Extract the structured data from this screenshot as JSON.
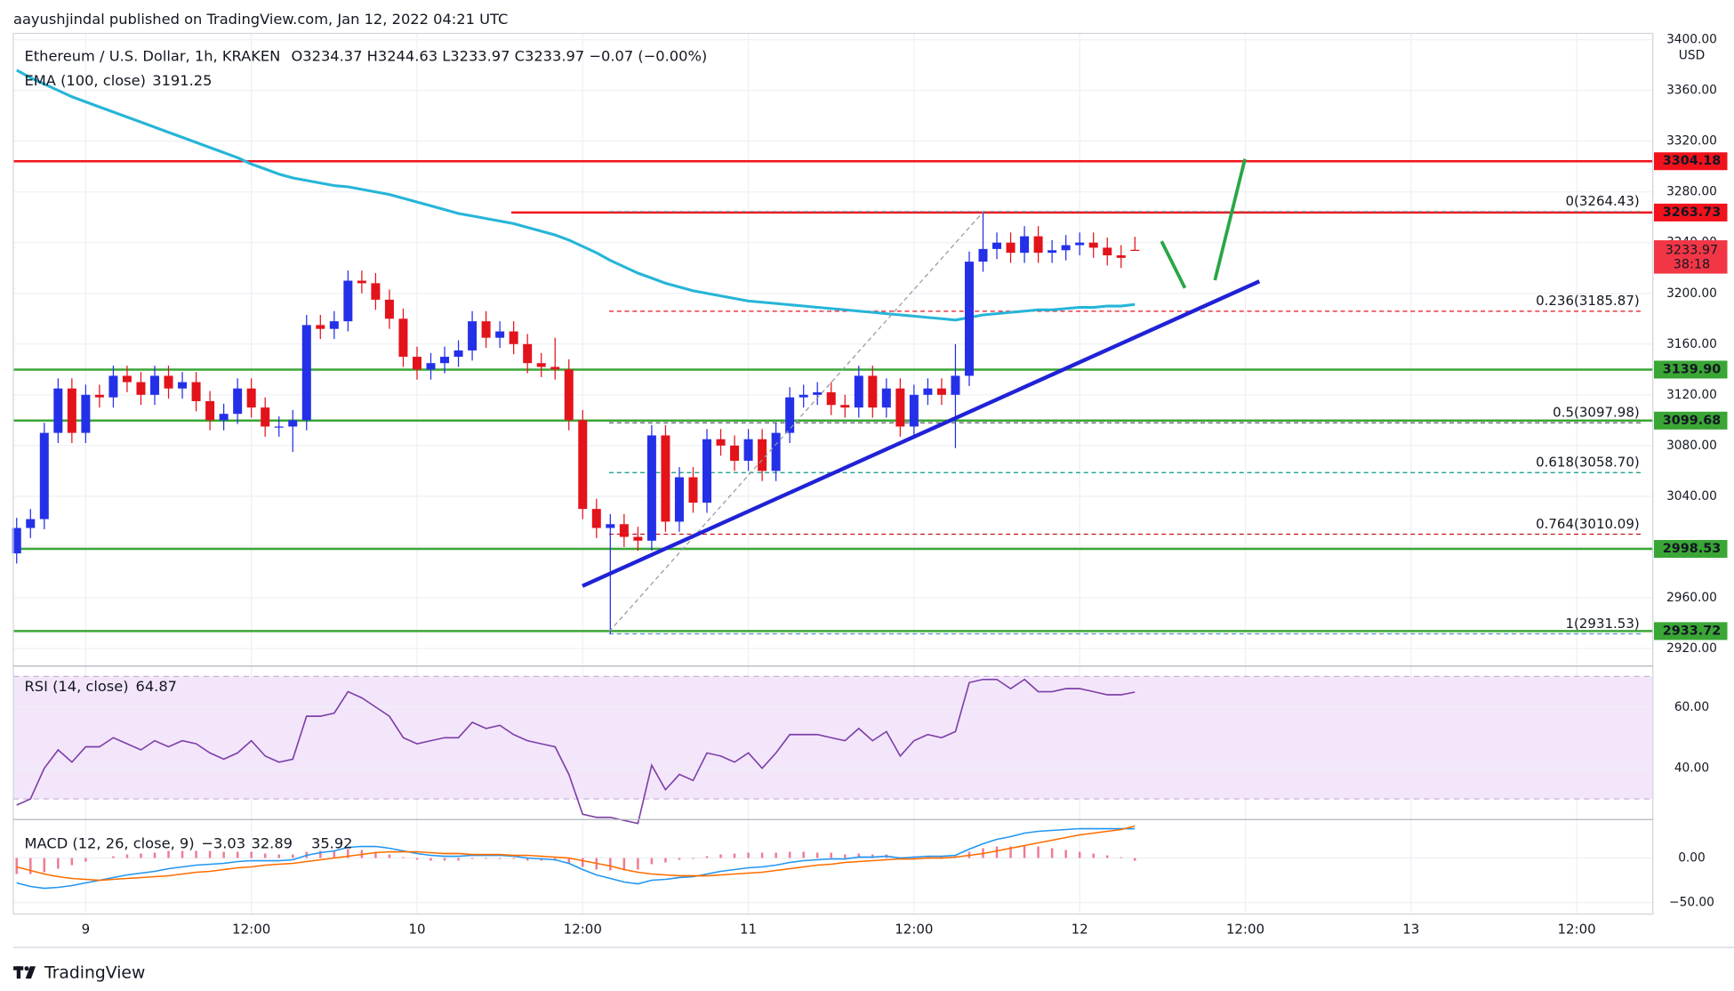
{
  "header": {
    "published": "aayushjindal published on TradingView.com, Jan 12, 2022 04:21 UTC"
  },
  "chart_data": [
    {
      "type": "candlestick",
      "title": "Ethereum / U.S. Dollar, 1h, KRAKEN",
      "ohlc_text": "O3234.37 H3244.63 L3233.97 C3233.97 −0.07 (−0.00%)",
      "currency": "USD",
      "up_color": "#2430e8",
      "down_color": "#e3131b",
      "open": [
        2995,
        3015,
        3022,
        3090,
        3125,
        3090,
        3120,
        3118,
        3135,
        3130,
        3120,
        3135,
        3125,
        3130,
        3115,
        3100,
        3105,
        3125,
        3110,
        3095,
        3095,
        3100,
        3175,
        3172,
        3178,
        3210,
        3208,
        3195,
        3180,
        3150,
        3140,
        3145,
        3150,
        3155,
        3178,
        3165,
        3170,
        3160,
        3145,
        3142,
        3140,
        3100,
        3030,
        3015,
        3018,
        3008,
        3005,
        3088,
        3020,
        3055,
        3035,
        3085,
        3080,
        3068,
        3085,
        3060,
        3090,
        3118,
        3120,
        3122,
        3112,
        3110,
        3135,
        3110,
        3125,
        3095,
        3120,
        3125,
        3120,
        3135,
        3225,
        3235,
        3240,
        3232,
        3245,
        3232,
        3234,
        3238,
        3240,
        3236,
        3230,
        3234.37
      ],
      "high": [
        3023,
        3030,
        3098,
        3133,
        3133,
        3128,
        3128,
        3143,
        3143,
        3138,
        3143,
        3143,
        3138,
        3138,
        3123,
        3113,
        3133,
        3133,
        3118,
        3103,
        3108,
        3183,
        3183,
        3186,
        3218,
        3218,
        3216,
        3203,
        3188,
        3158,
        3153,
        3158,
        3163,
        3186,
        3186,
        3178,
        3178,
        3168,
        3153,
        3165,
        3148,
        3108,
        3038,
        3026,
        3026,
        3016,
        3096,
        3096,
        3063,
        3063,
        3093,
        3093,
        3088,
        3093,
        3093,
        3098,
        3126,
        3128,
        3130,
        3130,
        3120,
        3143,
        3143,
        3133,
        3133,
        3128,
        3133,
        3133,
        3160,
        3233,
        3264.43,
        3248,
        3248,
        3253,
        3253,
        3242,
        3246,
        3248,
        3248,
        3244,
        3238,
        3244.63
      ],
      "low": [
        2987,
        3007,
        3014,
        3082,
        3082,
        3082,
        3110,
        3110,
        3122,
        3112,
        3112,
        3117,
        3117,
        3107,
        3092,
        3092,
        3097,
        3102,
        3087,
        3087,
        3075,
        3092,
        3164,
        3164,
        3170,
        3200,
        3187,
        3172,
        3142,
        3132,
        3132,
        3137,
        3142,
        3147,
        3157,
        3157,
        3152,
        3137,
        3134,
        3132,
        3092,
        3022,
        3007,
        2931.53,
        3000,
        2997,
        2997,
        3012,
        3012,
        3027,
        3027,
        3072,
        3060,
        3060,
        3052,
        3052,
        3082,
        3110,
        3112,
        3104,
        3102,
        3102,
        3102,
        3102,
        3087,
        3087,
        3112,
        3112,
        3078,
        3127,
        3217,
        3227,
        3224,
        3224,
        3224,
        3224,
        3226,
        3230,
        3228,
        3222,
        3220,
        3233.97
      ],
      "close": [
        3015,
        3022,
        3090,
        3125,
        3090,
        3120,
        3118,
        3135,
        3130,
        3120,
        3135,
        3125,
        3130,
        3115,
        3100,
        3105,
        3125,
        3110,
        3095,
        3095,
        3100,
        3175,
        3172,
        3178,
        3210,
        3208,
        3195,
        3180,
        3150,
        3140,
        3145,
        3150,
        3155,
        3178,
        3165,
        3170,
        3160,
        3145,
        3142,
        3140,
        3100,
        3030,
        3015,
        3018,
        3008,
        3005,
        3088,
        3020,
        3055,
        3035,
        3085,
        3080,
        3068,
        3085,
        3060,
        3090,
        3118,
        3120,
        3122,
        3112,
        3110,
        3135,
        3110,
        3125,
        3095,
        3120,
        3125,
        3120,
        3135,
        3225,
        3235,
        3240,
        3232,
        3245,
        3232,
        3234,
        3238,
        3240,
        3236,
        3230,
        3228,
        3233.97
      ],
      "ema": {
        "name": "EMA (100, close)",
        "legend_value": "3191.25",
        "color": "#26b5d8",
        "values": [
          3376,
          3370,
          3365,
          3360,
          3355,
          3351,
          3347,
          3343,
          3339,
          3335,
          3331,
          3327,
          3323,
          3319,
          3315,
          3311,
          3307,
          3302,
          3298,
          3294,
          3291,
          3289,
          3287,
          3285,
          3284,
          3282,
          3280,
          3278,
          3275,
          3272,
          3269,
          3266,
          3263,
          3261,
          3259,
          3257,
          3255,
          3252,
          3249,
          3246,
          3242,
          3237,
          3232,
          3226,
          3221,
          3216,
          3212,
          3208,
          3205,
          3202,
          3200,
          3198,
          3196,
          3194,
          3193,
          3192,
          3191,
          3190,
          3189,
          3188,
          3187,
          3186,
          3185,
          3184,
          3183,
          3182,
          3181,
          3180,
          3179,
          3181,
          3183,
          3184,
          3185,
          3186,
          3187,
          3187,
          3188,
          3189,
          3189,
          3190,
          3190,
          3191.25
        ]
      },
      "ylim": [
        2907,
        3405
      ],
      "yticks": [
        {
          "value": 2920,
          "label": "2920.00"
        },
        {
          "value": 2960,
          "label": "2960.00"
        },
        {
          "value": 3000,
          "label": "3000.00"
        },
        {
          "value": 3040,
          "label": "3040.00"
        },
        {
          "value": 3080,
          "label": "3080.00"
        },
        {
          "value": 3120,
          "label": "3120.00"
        },
        {
          "value": 3160,
          "label": "3160.00"
        },
        {
          "value": 3200,
          "label": "3200.00"
        },
        {
          "value": 3240,
          "label": "3240.00"
        },
        {
          "value": 3280,
          "label": "3280.00"
        },
        {
          "value": 3320,
          "label": "3320.00"
        },
        {
          "value": 3360,
          "label": "3360.00"
        },
        {
          "value": 3400,
          "label": "3400.00"
        }
      ],
      "x_labels": [
        "9",
        "12:00",
        "10",
        "12:00",
        "11",
        "12:00",
        "12",
        "12:00",
        "13",
        "12:00"
      ],
      "levels": [
        {
          "value": 3304.18,
          "label": "3304.18",
          "color": "#f2121b"
        },
        {
          "value": 3263.73,
          "label": "3263.73",
          "color": "#f2121b"
        },
        {
          "value": 3139.9,
          "label": "3139.90",
          "color": "#3aa635"
        },
        {
          "value": 3099.68,
          "label": "3099.68",
          "color": "#3aa635"
        },
        {
          "value": 2998.53,
          "label": "2998.53",
          "color": "#3aa635"
        },
        {
          "value": 2933.72,
          "label": "2933.72",
          "color": "#3aa635"
        }
      ],
      "fib": [
        {
          "value": 3264.43,
          "label": "0(3264.43)",
          "color": "#787b86"
        },
        {
          "value": 3185.87,
          "label": "0.236(3185.87)",
          "color": "#e3131b"
        },
        {
          "value": 3097.98,
          "label": "0.5(3097.98)",
          "color": "#4c525e"
        },
        {
          "value": 3058.7,
          "label": "0.618(3058.70)",
          "color": "#089981"
        },
        {
          "value": 3010.09,
          "label": "0.764(3010.09)",
          "color": "#c4141b"
        },
        {
          "value": 2931.53,
          "label": "1(2931.53)",
          "color": "#4a90c8"
        }
      ],
      "last_price": {
        "value": 3233.97,
        "label": "3233.97",
        "countdown": "38:18",
        "color": "#f23645"
      }
    },
    {
      "type": "line",
      "title": "RSI (14, close)",
      "legend_value": "64.87",
      "color": "#7e3fa8",
      "band": [
        30,
        70
      ],
      "band_color": "#f3e6fb",
      "values": [
        28,
        30,
        40,
        46,
        42,
        47,
        47,
        50,
        48,
        46,
        49,
        47,
        49,
        48,
        45,
        43,
        45,
        49,
        44,
        42,
        43,
        57,
        57,
        58,
        65,
        63,
        60,
        57,
        50,
        48,
        49,
        50,
        50,
        55,
        53,
        54,
        51,
        49,
        48,
        47,
        38,
        25,
        24,
        24,
        23,
        22,
        41,
        33,
        38,
        36,
        45,
        44,
        42,
        45,
        40,
        45,
        51,
        51,
        51,
        50,
        49,
        53,
        49,
        52,
        44,
        49,
        51,
        50,
        52,
        68,
        69,
        69,
        66,
        69,
        65,
        65,
        66,
        66,
        65,
        64,
        64,
        64.87
      ],
      "ylim": [
        24,
        73
      ],
      "yticks": [
        {
          "value": 40,
          "label": "40.00"
        },
        {
          "value": 60,
          "label": "60.00"
        }
      ]
    },
    {
      "type": "macd",
      "title": "MACD (12, 26, close, 9)",
      "series": [
        {
          "name": "histogram",
          "legend_value": "−3.03",
          "color": "#ef7b93",
          "values": [
            -18,
            -18,
            -16,
            -12,
            -8,
            -4,
            0,
            2,
            4,
            5,
            6,
            8,
            8,
            8,
            8,
            7,
            7,
            7,
            5,
            4,
            4,
            7,
            8,
            8,
            10,
            9,
            7,
            4,
            1,
            -2,
            -3,
            -3,
            -3,
            -1,
            -1,
            -1,
            -1,
            -3,
            -3,
            -3,
            -6,
            -10,
            -13,
            -14,
            -14,
            -13,
            -7,
            -5,
            -2,
            -1,
            2,
            4,
            5,
            6,
            6,
            6,
            7,
            7,
            6,
            6,
            4,
            5,
            4,
            4,
            1,
            2,
            2,
            2,
            2,
            7,
            11,
            13,
            13,
            14,
            13,
            11,
            9,
            7,
            5,
            3,
            1,
            -3.03
          ]
        },
        {
          "name": "macd",
          "legend_value": "32.89",
          "color": "#2196f3",
          "values": [
            -28,
            -32,
            -34,
            -33,
            -31,
            -28,
            -25,
            -22,
            -19,
            -17,
            -15,
            -12,
            -10,
            -8,
            -7,
            -6,
            -4,
            -3,
            -3,
            -3,
            -2,
            3,
            6,
            8,
            12,
            13,
            13,
            11,
            8,
            5,
            3,
            2,
            2,
            3,
            3,
            3,
            2,
            0,
            -1,
            -2,
            -6,
            -13,
            -19,
            -23,
            -27,
            -29,
            -25,
            -24,
            -22,
            -21,
            -18,
            -15,
            -13,
            -11,
            -10,
            -8,
            -5,
            -3,
            -2,
            -1,
            -1,
            1,
            1,
            2,
            0,
            1,
            2,
            2,
            3,
            10,
            16,
            21,
            24,
            28,
            30,
            31,
            32,
            33,
            33,
            33,
            33,
            32.89
          ]
        },
        {
          "name": "signal",
          "legend_value": "35.92",
          "color": "#ff6d00",
          "values": [
            -10,
            -14,
            -18,
            -21,
            -23,
            -24,
            -25,
            -24,
            -23,
            -22,
            -21,
            -20,
            -18,
            -16,
            -15,
            -13,
            -11,
            -10,
            -8,
            -7,
            -6,
            -4,
            -2,
            0,
            2,
            4,
            6,
            7,
            7,
            7,
            6,
            5,
            5,
            4,
            4,
            4,
            3,
            3,
            2,
            1,
            0,
            -3,
            -6,
            -9,
            -13,
            -16,
            -18,
            -19,
            -20,
            -20,
            -20,
            -19,
            -18,
            -17,
            -16,
            -14,
            -12,
            -10,
            -8,
            -7,
            -5,
            -4,
            -3,
            -2,
            -1,
            -1,
            0,
            0,
            1,
            3,
            5,
            8,
            11,
            14,
            17,
            20,
            23,
            26,
            28,
            30,
            32,
            35.92
          ]
        }
      ],
      "ylim": [
        -63,
        42
      ],
      "yticks": [
        {
          "value": 0,
          "label": "0.00"
        },
        {
          "value": -50,
          "label": "−50.00"
        }
      ]
    }
  ],
  "footer": {
    "brand": "TradingView"
  }
}
